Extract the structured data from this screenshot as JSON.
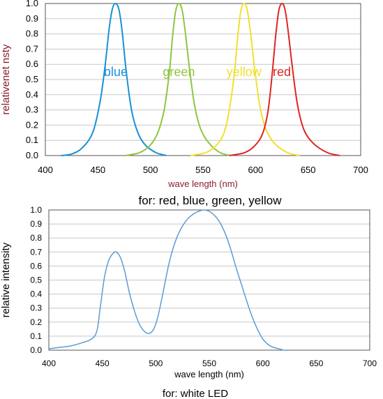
{
  "chart_data": [
    {
      "type": "line",
      "xlabel": "wave length (nm)",
      "ylabel": "relativenet  nsty",
      "caption": "for: red, blue, green, yellow",
      "xlim": [
        400,
        700
      ],
      "ylim": [
        0,
        1.0
      ],
      "x_ticks": [
        "400",
        "450",
        "500",
        "550",
        "600",
        "650",
        "700"
      ],
      "y_ticks": [
        "0.0",
        "0.1",
        "0.2",
        "0.3",
        "0.4",
        "0.5",
        "0.6",
        "0.7",
        "0.8",
        "0.9",
        "1.0"
      ],
      "grid": true,
      "series": [
        {
          "name": "blue",
          "color": "#1a8fd6",
          "x": [
            415,
            425,
            435,
            445,
            452,
            457,
            461,
            464,
            467,
            470,
            473,
            477,
            482,
            488,
            495,
            505,
            515
          ],
          "y": [
            0.0,
            0.01,
            0.05,
            0.15,
            0.35,
            0.6,
            0.85,
            0.97,
            1.0,
            0.96,
            0.82,
            0.55,
            0.3,
            0.15,
            0.07,
            0.02,
            0.0
          ]
        },
        {
          "name": "green",
          "color": "#8ec63f",
          "x": [
            476,
            490,
            500,
            507,
            513,
            518,
            521,
            524,
            527,
            530,
            533,
            537,
            542,
            548,
            556,
            566,
            576
          ],
          "y": [
            0.0,
            0.02,
            0.07,
            0.15,
            0.3,
            0.55,
            0.78,
            0.95,
            1.0,
            0.96,
            0.82,
            0.58,
            0.33,
            0.17,
            0.08,
            0.02,
            0.0
          ]
        },
        {
          "name": "yellow",
          "color": "#f0e030",
          "x": [
            538,
            553,
            563,
            570,
            575,
            580,
            583,
            586,
            589,
            592,
            595,
            599,
            604,
            610,
            618,
            630,
            642
          ],
          "y": [
            0.0,
            0.02,
            0.07,
            0.15,
            0.3,
            0.55,
            0.78,
            0.95,
            1.0,
            0.96,
            0.82,
            0.58,
            0.33,
            0.17,
            0.08,
            0.02,
            0.0
          ]
        },
        {
          "name": "red",
          "color": "#e02424",
          "x": [
            575,
            590,
            600,
            607,
            612,
            616,
            619,
            622,
            625,
            628,
            631,
            635,
            640,
            646,
            655,
            668,
            680
          ],
          "y": [
            0.0,
            0.02,
            0.07,
            0.15,
            0.3,
            0.55,
            0.78,
            0.95,
            1.0,
            0.96,
            0.82,
            0.58,
            0.33,
            0.17,
            0.08,
            0.02,
            0.0
          ]
        }
      ]
    },
    {
      "type": "line",
      "xlabel": "wave length (nm)",
      "ylabel": "relative intensity",
      "caption": "for: white LED",
      "xlim": [
        400,
        700
      ],
      "ylim": [
        0,
        1.0
      ],
      "x_ticks": [
        "400",
        "450",
        "500",
        "550",
        "600",
        "650",
        "700"
      ],
      "y_ticks": [
        "0.0",
        "0.1",
        "0.2",
        "0.3",
        "0.4",
        "0.5",
        "0.6",
        "0.7",
        "0.8",
        "0.9",
        "1.0"
      ],
      "grid": true,
      "series": [
        {
          "color": "#5b9bd5",
          "x": [
            400,
            410,
            420,
            430,
            440,
            445,
            448,
            452,
            456,
            460,
            463,
            467,
            471,
            475,
            480,
            485,
            490,
            494,
            498,
            502,
            507,
            513,
            520,
            528,
            535,
            540,
            545,
            550,
            555,
            560,
            565,
            570,
            575,
            580,
            585,
            590,
            595,
            600,
            605,
            610,
            615,
            620,
            623
          ],
          "y": [
            0.01,
            0.02,
            0.03,
            0.05,
            0.08,
            0.14,
            0.3,
            0.52,
            0.64,
            0.69,
            0.7,
            0.66,
            0.56,
            0.42,
            0.28,
            0.18,
            0.13,
            0.12,
            0.15,
            0.24,
            0.42,
            0.64,
            0.81,
            0.92,
            0.97,
            0.99,
            1.0,
            0.99,
            0.96,
            0.91,
            0.83,
            0.72,
            0.59,
            0.47,
            0.35,
            0.24,
            0.15,
            0.08,
            0.04,
            0.02,
            0.01,
            0.0,
            0.0
          ]
        }
      ]
    }
  ]
}
